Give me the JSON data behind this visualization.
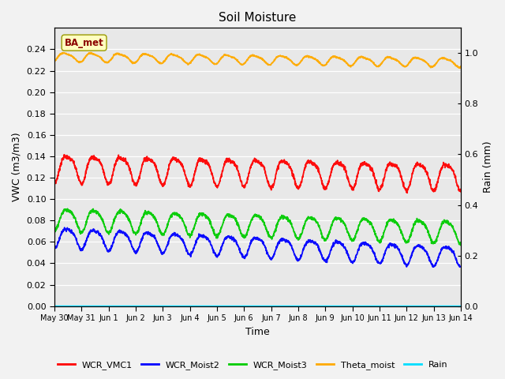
{
  "title": "Soil Moisture",
  "xlabel": "Time",
  "ylabel_left": "VWC (m3/m3)",
  "ylabel_right": "Rain (mm)",
  "annotation": "BA_met",
  "fig_facecolor": "#f2f2f2",
  "bg_color": "#e8e8e8",
  "ylim_left": [
    0.0,
    0.26
  ],
  "ylim_right": [
    0.0,
    1.1
  ],
  "yticks_left": [
    0.0,
    0.02,
    0.04,
    0.06,
    0.08,
    0.1,
    0.12,
    0.14,
    0.16,
    0.18,
    0.2,
    0.22,
    0.24
  ],
  "yticks_right": [
    0.0,
    0.2,
    0.4,
    0.6,
    0.8,
    1.0
  ],
  "n_points": 2000,
  "series": {
    "WCR_VMC1": {
      "color": "#ff0000",
      "base": 0.13,
      "amp": 0.012,
      "amp2": 0.003,
      "trend": -0.008,
      "period_days": 1.0,
      "phase": -1.5
    },
    "WCR_Moist2": {
      "color": "#0000ff",
      "base": 0.065,
      "amp": 0.009,
      "amp2": 0.002,
      "trend": -0.018,
      "period_days": 1.0,
      "phase": -1.5
    },
    "WCR_Moist3": {
      "color": "#00cc00",
      "base": 0.082,
      "amp": 0.01,
      "amp2": 0.002,
      "trend": -0.012,
      "period_days": 1.0,
      "phase": -1.5
    },
    "Theta_moist": {
      "color": "#ffaa00",
      "base": 0.233,
      "amp": 0.004,
      "amp2": 0.001,
      "trend": -0.005,
      "period_days": 1.0,
      "phase": -1.0
    },
    "Rain": {
      "color": "#00ddff",
      "base": 0.0,
      "amp": 0.0,
      "amp2": 0.0,
      "trend": 0.0,
      "period_days": 1.0,
      "phase": 0.0
    }
  },
  "xtick_labels": [
    "May 30",
    "May 31",
    "Jun 1",
    "Jun 2",
    "Jun 3",
    "Jun 4",
    "Jun 5",
    "Jun 6",
    "Jun 7",
    "Jun 8",
    "Jun 9",
    "Jun 10",
    "Jun 11",
    "Jun 12",
    "Jun 13",
    "Jun 14"
  ],
  "xtick_positions": [
    0,
    1,
    2,
    3,
    4,
    5,
    6,
    7,
    8,
    9,
    10,
    11,
    12,
    13,
    14,
    15
  ]
}
